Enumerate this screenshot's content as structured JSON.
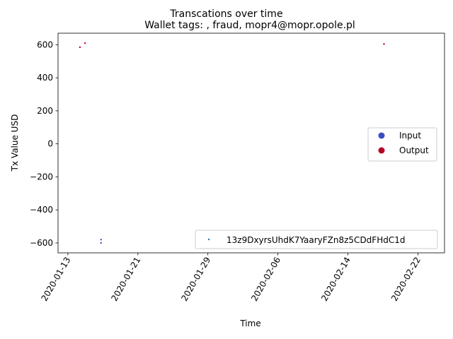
{
  "chart_data": {
    "type": "scatter",
    "suptitle": "Transcations over time",
    "title": "Wallet tags: , fraud, mopr4@mopr.opole.pl",
    "xlabel": "Time",
    "ylabel": "Tx Value USD",
    "x_start": "2020-01-11",
    "x_end": "2020-02-25",
    "xlim": [
      "2020-01-11T21:00",
      "2020-02-25T01:00"
    ],
    "ylim": [
      -660,
      670
    ],
    "x_ticks": [
      "2020-01-13",
      "2020-01-21",
      "2020-01-29",
      "2020-02-06",
      "2020-02-14",
      "2020-02-22"
    ],
    "y_ticks": [
      -600,
      -400,
      -200,
      0,
      200,
      400,
      600
    ],
    "grid": false,
    "colors": {
      "input": "#3b4cc0",
      "output": "#b40426",
      "wallet": "#1f77b4"
    },
    "series": [
      {
        "name": "Input",
        "points": [
          {
            "x": "2020-01-16T19:00",
            "y": -580
          },
          {
            "x": "2020-01-16T19:00",
            "y": -600
          }
        ]
      },
      {
        "name": "Output",
        "points": [
          {
            "x": "2020-01-14T09:00",
            "y": 585
          },
          {
            "x": "2020-01-14T23:00",
            "y": 610
          },
          {
            "x": "2020-02-18T03:00",
            "y": 605
          }
        ]
      }
    ],
    "legend_category": {
      "placement": "center-right",
      "entries": [
        "Input",
        "Output"
      ]
    },
    "legend_wallet": {
      "placement": "lower-right",
      "label": "13z9DxyrsUhdK7YaaryFZn8z5CDdFHdC1d"
    }
  }
}
